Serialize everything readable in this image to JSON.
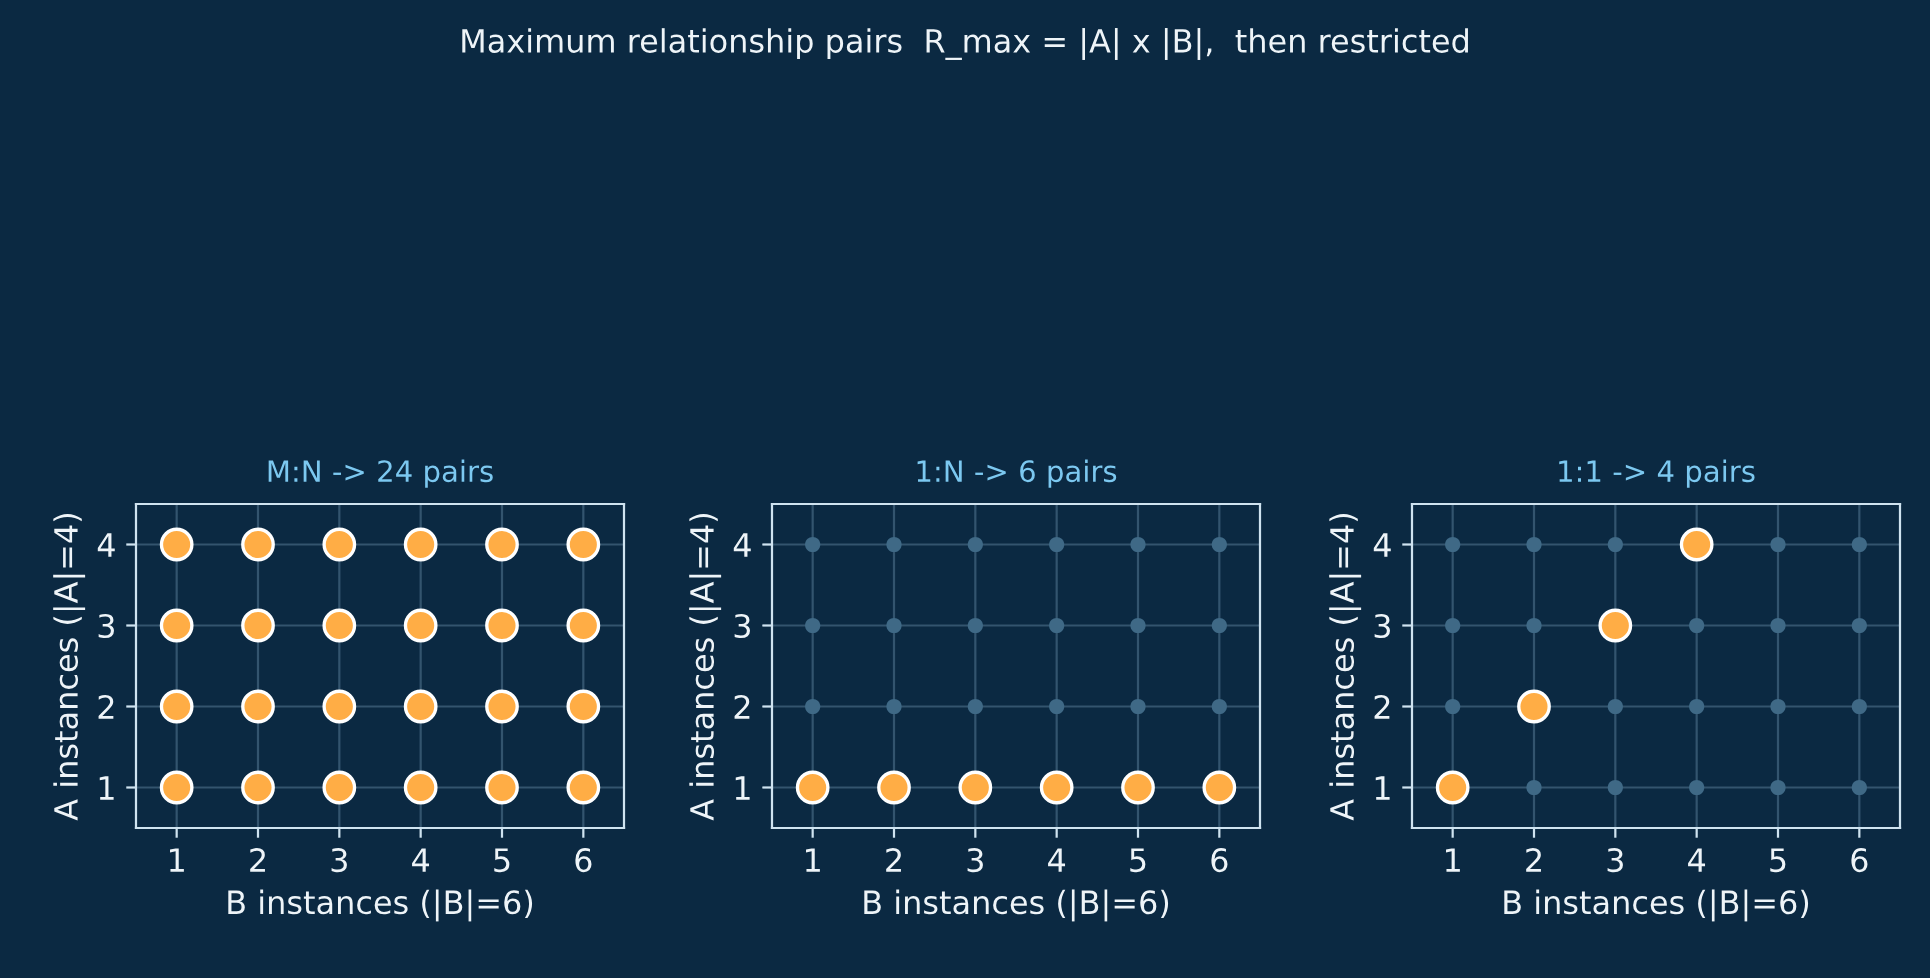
{
  "chart_data": [
    {
      "type": "scatter",
      "title": "M:N -> 24 pairs",
      "xlabel": "B instances (|B|=6)",
      "ylabel": "A instances (|A|=4)",
      "annotations": [
        "Maximum relationship pairs  R_max = |A| x |B|,  then restricted"
      ],
      "xlim": [
        0.5,
        6.5
      ],
      "ylim": [
        0.5,
        4.5
      ],
      "xticks": [
        1,
        2,
        3,
        4,
        5,
        6
      ],
      "yticks": [
        1,
        2,
        3,
        4
      ],
      "grid": true,
      "marker": "circle",
      "series": [
        {
          "color": "#ffad45",
          "x": [
            1,
            2,
            3,
            4,
            5,
            6,
            1,
            2,
            3,
            4,
            5,
            6,
            1,
            2,
            3,
            4,
            5,
            6,
            1,
            2,
            3,
            4,
            5,
            6
          ],
          "values": [
            1,
            1,
            1,
            1,
            1,
            1,
            2,
            2,
            2,
            2,
            2,
            2,
            3,
            3,
            3,
            3,
            3,
            3,
            4,
            4,
            4,
            4,
            4,
            4
          ]
        }
      ]
    },
    {
      "type": "scatter",
      "title": "1:N -> 6 pairs",
      "xlabel": "B instances (|B|=6)",
      "ylabel": "A instances (|A|=4)",
      "xlim": [
        0.5,
        6.5
      ],
      "ylim": [
        0.5,
        4.5
      ],
      "xticks": [
        1,
        2,
        3,
        4,
        5,
        6
      ],
      "yticks": [
        1,
        2,
        3,
        4
      ],
      "grid": true,
      "marker": "circle",
      "series": [
        {
          "color": "#3f6986",
          "x": [
            1,
            2,
            3,
            4,
            5,
            6,
            1,
            2,
            3,
            4,
            5,
            6,
            1,
            2,
            3,
            4,
            5,
            6
          ],
          "values": [
            2,
            2,
            2,
            2,
            2,
            2,
            3,
            3,
            3,
            3,
            3,
            3,
            4,
            4,
            4,
            4,
            4,
            4
          ]
        },
        {
          "color": "#ffad45",
          "x": [
            1,
            2,
            3,
            4,
            5,
            6
          ],
          "values": [
            1,
            1,
            1,
            1,
            1,
            1
          ]
        }
      ]
    },
    {
      "type": "scatter",
      "title": "1:1 -> 4 pairs",
      "xlabel": "B instances (|B|=6)",
      "ylabel": "A instances (|A|=4)",
      "xlim": [
        0.5,
        6.5
      ],
      "ylim": [
        0.5,
        4.5
      ],
      "xticks": [
        1,
        2,
        3,
        4,
        5,
        6
      ],
      "yticks": [
        1,
        2,
        3,
        4
      ],
      "grid": true,
      "marker": "circle",
      "series": [
        {
          "color": "#3f6986",
          "x": [
            2,
            3,
            4,
            5,
            6,
            1,
            3,
            4,
            5,
            6,
            1,
            2,
            4,
            5,
            6,
            1,
            2,
            3,
            5,
            6
          ],
          "values": [
            1,
            1,
            1,
            1,
            1,
            2,
            2,
            2,
            2,
            2,
            3,
            3,
            3,
            3,
            3,
            4,
            4,
            4,
            4,
            4
          ]
        },
        {
          "color": "#ffad45",
          "x": [
            1,
            2,
            3,
            4
          ],
          "values": [
            1,
            2,
            3,
            4
          ]
        }
      ]
    }
  ]
}
